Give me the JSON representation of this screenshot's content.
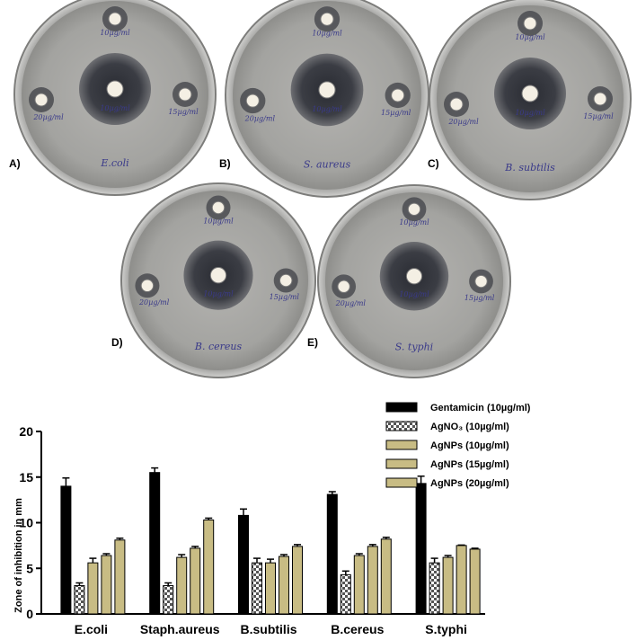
{
  "plates": [
    {
      "panel": "A)",
      "organism": "E.coli",
      "top": "10µg/ml",
      "center": "10µg/ml",
      "left": "20µg/ml",
      "right": "15µg/ml"
    },
    {
      "panel": "B)",
      "organism": "S. aureus",
      "top": "10µg/ml",
      "center": "10µg/ml",
      "left": "20µg/ml",
      "right": "15µg/ml"
    },
    {
      "panel": "C)",
      "organism": "B. subtilis",
      "top": "10µg/ml",
      "center": "10µg/ml",
      "left": "20µg/ml",
      "right": "15µg/ml"
    },
    {
      "panel": "D)",
      "organism": "B. cereus",
      "top": "10µg/ml",
      "center": "10µg/ml",
      "left": "20µg/ml",
      "right": "15µg/ml"
    },
    {
      "panel": "E)",
      "organism": "S. typhi",
      "top": "10µg/ml",
      "center": "10µg/ml",
      "left": "20µg/ml",
      "right": "15µg/ml"
    }
  ],
  "chart_data": {
    "type": "bar",
    "title": "",
    "xlabel": "",
    "ylabel": "Zone of inhibition in mm",
    "ylim": [
      0,
      20
    ],
    "yticks": [
      0,
      5,
      10,
      15,
      20
    ],
    "categories": [
      "E.coli",
      "Staph.aureus",
      "B.subtilis",
      "B.cereus",
      "S.typhi"
    ],
    "legend_position": "top-right",
    "series": [
      {
        "name": "Gentamicin (10µg/ml)",
        "pattern": "solid",
        "color": "#000000",
        "values": [
          14.0,
          15.5,
          10.8,
          13.1,
          14.3
        ],
        "errors": [
          0.9,
          0.5,
          0.7,
          0.3,
          0.8
        ]
      },
      {
        "name": "AgNO₃ (10µg/ml)",
        "pattern": "checker",
        "color": "#555555",
        "values": [
          3.1,
          3.1,
          5.6,
          4.3,
          5.6
        ],
        "errors": [
          0.3,
          0.3,
          0.5,
          0.4,
          0.5
        ]
      },
      {
        "name": "AgNPs (10µg/ml)",
        "pattern": "solid",
        "color": "#c8bc84",
        "values": [
          5.6,
          6.2,
          5.6,
          6.4,
          6.2
        ],
        "errors": [
          0.5,
          0.3,
          0.4,
          0.2,
          0.2
        ]
      },
      {
        "name": "AgNPs (15µg/ml)",
        "pattern": "solid",
        "color": "#c8bc84",
        "values": [
          6.4,
          7.2,
          6.3,
          7.4,
          7.5
        ],
        "errors": [
          0.2,
          0.2,
          0.2,
          0.2,
          0.05
        ]
      },
      {
        "name": "AgNPs (20µg/ml)",
        "pattern": "solid",
        "color": "#c8bc84",
        "values": [
          8.1,
          10.3,
          7.4,
          8.2,
          7.1
        ],
        "errors": [
          0.2,
          0.2,
          0.2,
          0.2,
          0.1
        ]
      }
    ]
  }
}
